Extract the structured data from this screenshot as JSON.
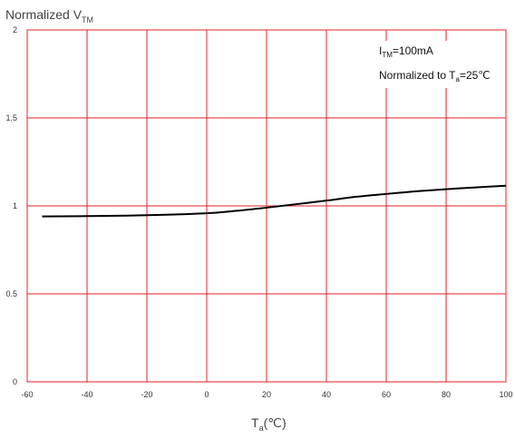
{
  "chart_data": {
    "type": "line",
    "title": {
      "base": "Normalized V",
      "sub": "TM"
    },
    "xlabel": {
      "base": "T",
      "sub": "a",
      "rest": "(℃)"
    },
    "annotations": {
      "line1": {
        "base": "I",
        "sub": "TM",
        "rest": "=100mA"
      },
      "line2": {
        "base": "Normalized to T",
        "sub": "a",
        "rest": "=25℃"
      }
    },
    "xlim": [
      -60,
      100
    ],
    "ylim": [
      0,
      2
    ],
    "xticks": [
      "-60",
      "-40",
      "-20",
      "0",
      "20",
      "40",
      "60",
      "80",
      "100"
    ],
    "yticks": [
      "0",
      "0.5",
      "1",
      "1.5",
      "2"
    ],
    "grid": true,
    "grid_color": "#e8202a",
    "line_color": "#000000",
    "series": [
      {
        "x": [
          -55,
          -40,
          -20,
          0,
          10,
          20,
          30,
          40,
          50,
          60,
          70,
          80,
          90,
          100
        ],
        "y": [
          0.94,
          0.942,
          0.947,
          0.958,
          0.972,
          0.99,
          1.01,
          1.03,
          1.052,
          1.068,
          1.083,
          1.095,
          1.105,
          1.115
        ]
      }
    ]
  }
}
